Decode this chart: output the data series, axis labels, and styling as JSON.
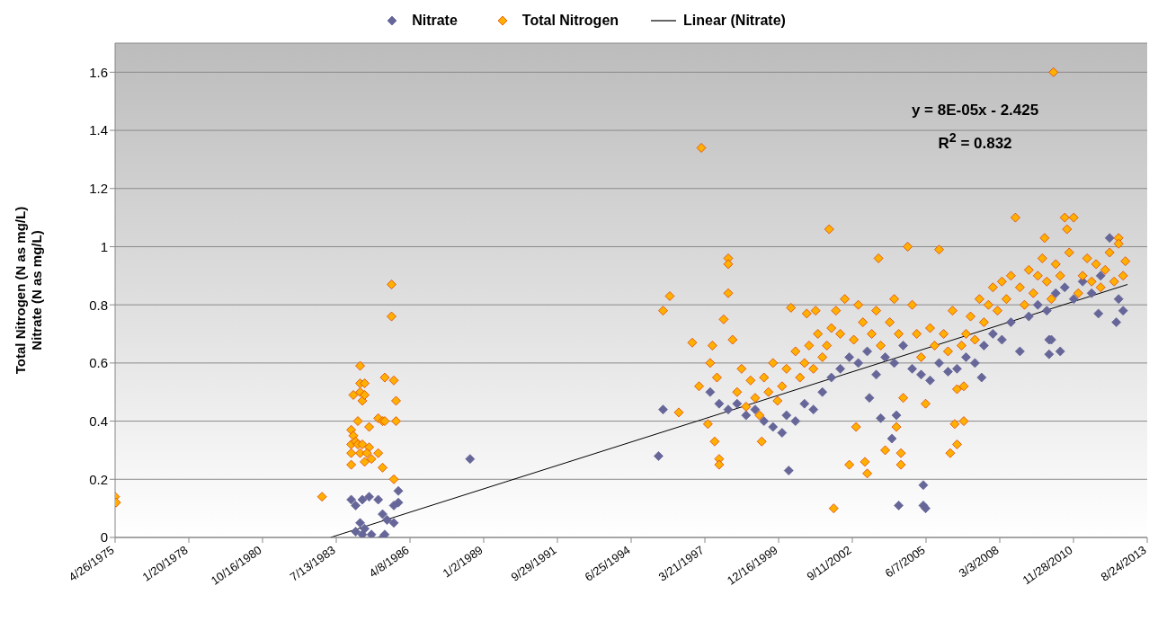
{
  "chart_data": {
    "type": "scatter",
    "ylabel": "Total Nitrogen (N as mg/L)\nNitrate (N as mg/L)",
    "annotations": [
      "y = 8E-05x - 2.425",
      "R$^{2}$ = 0.832"
    ],
    "marker": "diamond",
    "grid": "y",
    "legend": "top",
    "xlim": [
      "1975-04-26",
      "2013-08-24"
    ],
    "xticks": [
      {
        "value": "1975-04-26",
        "label": "4/26/1975"
      },
      {
        "value": "1978-01-20",
        "label": "1/20/1978"
      },
      {
        "value": "1980-10-16",
        "label": "10/16/1980"
      },
      {
        "value": "1983-07-13",
        "label": "7/13/1983"
      },
      {
        "value": "1986-04-08",
        "label": "4/8/1986"
      },
      {
        "value": "1989-01-02",
        "label": "1/2/1989"
      },
      {
        "value": "1991-09-29",
        "label": "9/29/1991"
      },
      {
        "value": "1994-06-25",
        "label": "6/25/1994"
      },
      {
        "value": "1997-03-21",
        "label": "3/21/1997"
      },
      {
        "value": "1999-12-16",
        "label": "12/16/1999"
      },
      {
        "value": "2002-09-11",
        "label": "9/11/2002"
      },
      {
        "value": "2005-06-07",
        "label": "6/7/2005"
      },
      {
        "value": "2008-03-03",
        "label": "3/3/2008"
      },
      {
        "value": "2010-11-28",
        "label": "11/28/2010"
      },
      {
        "value": "2013-08-24",
        "label": "8/24/2013"
      }
    ],
    "ylim": [
      0,
      1.7
    ],
    "yticks": [
      0,
      0.2,
      0.4,
      0.6,
      0.8,
      1,
      1.2,
      1.4,
      1.6
    ],
    "series": [
      {
        "name": "Nitrate",
        "color": "#666699",
        "x": [
          "1984-02",
          "1984-04",
          "1984-07",
          "1984-10",
          "1985-02",
          "1985-11",
          "1985-09",
          "1985-11",
          "1985-04",
          "1984-06",
          "1985-06",
          "1985-09",
          "1984-04",
          "1984-07",
          "1984-11",
          "1985-04",
          "1985-05",
          "1984-08",
          "1988-07",
          "1995-07",
          "1995-09",
          "2000-05",
          "2005-05",
          "2004-06",
          "2005-05",
          "2005-06",
          "2004-03",
          "2003-10",
          "2004-05",
          "2003-05",
          "2010-01",
          "2010-06",
          "2010-01",
          "2010-02",
          "2012-07",
          "2011-11",
          "2012-04",
          "2008-12",
          "2007-07",
          "1997-06",
          "1997-10",
          "1998-02",
          "1998-06",
          "1998-10",
          "1999-02",
          "1999-06",
          "1999-10",
          "2000-02",
          "2000-04",
          "2000-08",
          "2000-12",
          "2001-04",
          "2001-08",
          "2001-12",
          "2002-04",
          "2002-08",
          "2002-12",
          "2003-04",
          "2003-08",
          "2003-12",
          "2004-04",
          "2004-08",
          "2004-12",
          "2005-04",
          "2005-08",
          "2005-12",
          "2006-04",
          "2006-08",
          "2006-12",
          "2007-04",
          "2007-08",
          "2007-12",
          "2008-04",
          "2008-08",
          "2009-04",
          "2009-08",
          "2009-12",
          "2010-04",
          "2010-08",
          "2010-12",
          "2011-04",
          "2011-08",
          "2011-12",
          "2012-08",
          "2012-10"
        ],
        "values": [
          0.13,
          0.11,
          0.13,
          0.14,
          0.13,
          0.16,
          0.11,
          0.12,
          0.08,
          0.05,
          0.06,
          0.05,
          0.02,
          0.01,
          0.01,
          0,
          0.01,
          0.03,
          0.27,
          0.28,
          0.44,
          0.23,
          0.18,
          0.11,
          0.11,
          0.1,
          0.34,
          0.41,
          0.42,
          0.48,
          0.63,
          0.64,
          0.68,
          0.68,
          0.74,
          0.77,
          1.03,
          0.64,
          0.55,
          0.5,
          0.46,
          0.44,
          0.46,
          0.42,
          0.44,
          0.4,
          0.38,
          0.36,
          0.42,
          0.4,
          0.46,
          0.44,
          0.5,
          0.55,
          0.58,
          0.62,
          0.6,
          0.64,
          0.56,
          0.62,
          0.6,
          0.66,
          0.58,
          0.56,
          0.54,
          0.6,
          0.57,
          0.58,
          0.62,
          0.6,
          0.66,
          0.7,
          0.68,
          0.74,
          0.76,
          0.8,
          0.78,
          0.84,
          0.86,
          0.82,
          0.88,
          0.84,
          0.9,
          0.82,
          0.78
        ]
      },
      {
        "name": "Total Nitrogen",
        "color": "#ffb000",
        "x": [
          "1975-04-26",
          "1975-05-10",
          "1983-01",
          "1985-08",
          "1985-08",
          "1984-06",
          "1984-06",
          "1984-08",
          "1985-05",
          "1985-09",
          "1984-03",
          "1984-06",
          "1984-07",
          "1984-08",
          "1985-10",
          "1984-05",
          "1984-10",
          "1985-02",
          "1985-04",
          "1985-05",
          "1985-10",
          "1984-02",
          "1984-03",
          "1984-02",
          "1984-04",
          "1984-05",
          "1984-07",
          "1984-10",
          "1984-06",
          "1984-02",
          "1985-02",
          "1984-09",
          "1984-11",
          "1984-08",
          "1984-02",
          "1985-04",
          "1985-09",
          "1995-12",
          "1995-09",
          "1997-02",
          "2001-11",
          "2002-01",
          "1996-10",
          "1996-04",
          "1998-02",
          "1998-02",
          "1998-02",
          "1997-01",
          "1997-05",
          "1997-08",
          "1997-10",
          "1997-10",
          "1999-05",
          "2000-06",
          "2001-01",
          "2001-05",
          "2010-03",
          "2008-10",
          "2010-08",
          "2010-12",
          "2010-09",
          "2009-11",
          "2012-08",
          "2012-08",
          "2012-11",
          "2004-10",
          "2005-12",
          "2003-09",
          "2003-04",
          "2002-08",
          "2002-11",
          "2003-12",
          "2003-03",
          "2004-07",
          "2004-07",
          "2004-05",
          "2006-05",
          "2006-08",
          "2006-07",
          "2006-11",
          "2006-08",
          "2006-11",
          "2005-06",
          "2004-08",
          "1997-06",
          "1997-07",
          "1997-09",
          "1997-12",
          "1998-04",
          "1998-06",
          "1998-08",
          "1998-10",
          "1998-12",
          "1999-02",
          "1999-04",
          "1999-06",
          "1999-08",
          "1999-10",
          "1999-12",
          "2000-02",
          "2000-04",
          "2000-08",
          "2000-10",
          "2000-12",
          "2001-02",
          "2001-04",
          "2001-06",
          "2001-08",
          "2001-10",
          "2001-12",
          "2002-02",
          "2002-04",
          "2002-06",
          "2002-10",
          "2002-12",
          "2003-02",
          "2003-06",
          "2003-08",
          "2003-10",
          "2004-02",
          "2004-04",
          "2004-06",
          "2004-12",
          "2005-02",
          "2005-04",
          "2005-08",
          "2005-10",
          "2006-02",
          "2006-04",
          "2006-06",
          "2006-10",
          "2006-12",
          "2007-02",
          "2007-04",
          "2007-06",
          "2007-08",
          "2007-10",
          "2007-12",
          "2008-02",
          "2008-04",
          "2008-06",
          "2008-08",
          "2008-12",
          "2009-02",
          "2009-04",
          "2009-06",
          "2009-08",
          "2009-10",
          "2009-12",
          "2010-02",
          "2010-04",
          "2010-06",
          "2010-10",
          "2011-02",
          "2011-04",
          "2011-06",
          "2011-08",
          "2011-10",
          "2011-12",
          "2012-02",
          "2012-04",
          "2012-06",
          "2012-10"
        ],
        "values": [
          0.14,
          0.12,
          0.14,
          0.87,
          0.76,
          0.59,
          0.53,
          0.53,
          0.55,
          0.54,
          0.49,
          0.5,
          0.47,
          0.49,
          0.47,
          0.4,
          0.38,
          0.41,
          0.4,
          0.4,
          0.4,
          0.37,
          0.35,
          0.32,
          0.33,
          0.32,
          0.32,
          0.31,
          0.29,
          0.29,
          0.29,
          0.29,
          0.27,
          0.26,
          0.25,
          0.24,
          0.2,
          0.83,
          0.78,
          1.34,
          1.06,
          0.1,
          0.67,
          0.43,
          0.96,
          0.94,
          0.84,
          0.52,
          0.39,
          0.33,
          0.27,
          0.25,
          0.33,
          0.79,
          0.77,
          0.78,
          1.6,
          1.1,
          1.1,
          1.1,
          1.06,
          1.03,
          1.03,
          1.01,
          0.95,
          1,
          0.99,
          0.96,
          0.22,
          0.25,
          0.38,
          0.3,
          0.26,
          0.29,
          0.25,
          0.38,
          0.29,
          0.32,
          0.39,
          0.4,
          0.51,
          0.52,
          0.46,
          0.48,
          0.6,
          0.66,
          0.55,
          0.75,
          0.68,
          0.5,
          0.58,
          0.45,
          0.54,
          0.48,
          0.42,
          0.55,
          0.5,
          0.6,
          0.47,
          0.52,
          0.58,
          0.64,
          0.55,
          0.6,
          0.66,
          0.58,
          0.7,
          0.62,
          0.66,
          0.72,
          0.78,
          0.7,
          0.82,
          0.68,
          0.8,
          0.74,
          0.7,
          0.78,
          0.66,
          0.74,
          0.82,
          0.7,
          0.8,
          0.7,
          0.62,
          0.72,
          0.66,
          0.7,
          0.64,
          0.78,
          0.66,
          0.7,
          0.76,
          0.68,
          0.82,
          0.74,
          0.8,
          0.86,
          0.78,
          0.88,
          0.82,
          0.9,
          0.86,
          0.8,
          0.92,
          0.84,
          0.9,
          0.96,
          0.88,
          0.82,
          0.94,
          0.9,
          0.98,
          0.84,
          0.9,
          0.96,
          0.88,
          0.94,
          0.86,
          0.92,
          0.98,
          0.88,
          0.9
        ]
      },
      {
        "name": "Linear (Nitrate)",
        "type": "line",
        "marker": "none",
        "color": "#000000",
        "x": [
          "1983-04-26",
          "2012-11-30"
        ],
        "values": [
          0,
          0.87
        ]
      }
    ]
  }
}
